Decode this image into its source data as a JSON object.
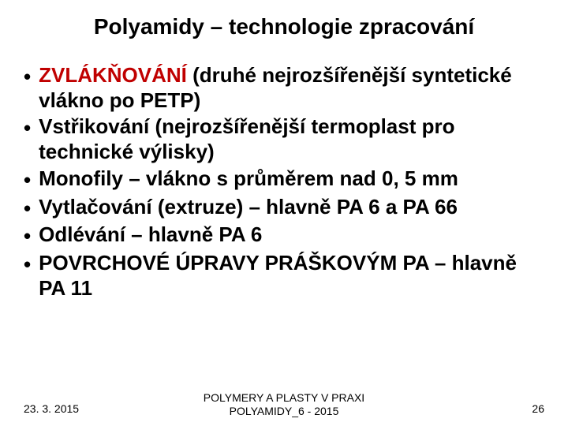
{
  "title": "Polyamidy – technologie zpracování",
  "bullets": [
    {
      "prefix": "ZVLÁKŇOVÁNÍ",
      "rest": " (druhé nejrozšířenější syntetické vlákno po PETP)"
    },
    {
      "prefix": "",
      "rest": "Vstřikování (nejrozšířenější termoplast pro technické výlisky)"
    },
    {
      "prefix": "",
      "rest": "Monofily – vlákno s průměrem nad 0, 5 mm"
    },
    {
      "prefix": "",
      "rest": "Vytlačování (extruze) – hlavně PA 6 a PA 66"
    },
    {
      "prefix": "",
      "rest": "Odlévání – hlavně PA 6"
    },
    {
      "prefix": "",
      "rest": "POVRCHOVÉ ÚPRAVY PRÁŠKOVÝM PA – hlavně PA 11"
    }
  ],
  "footer": {
    "date": "23. 3. 2015",
    "center_line1": "POLYMERY A PLASTY V PRAXI",
    "center_line2": "POLYAMIDY_6 - 2015",
    "page": "26"
  },
  "colors": {
    "title": "#000000",
    "text": "#000000",
    "highlight": "#c00000",
    "background": "#ffffff"
  }
}
